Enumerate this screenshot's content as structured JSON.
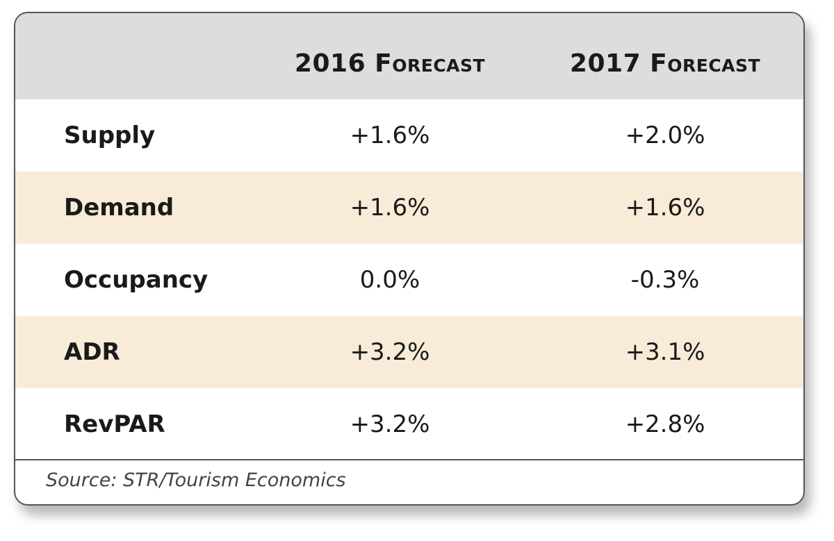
{
  "chart_data": {
    "type": "table",
    "columns": [
      "",
      "2016 Forecast",
      "2017 Forecast"
    ],
    "rows": [
      {
        "label": "Supply",
        "values": [
          "+1.6%",
          "+2.0%"
        ]
      },
      {
        "label": "Demand",
        "values": [
          "+1.6%",
          "+1.6%"
        ]
      },
      {
        "label": "Occupancy",
        "values": [
          "0.0%",
          "-0.3%"
        ]
      },
      {
        "label": "ADR",
        "values": [
          "+3.2%",
          "+3.1%"
        ]
      },
      {
        "label": "RevPAR",
        "values": [
          "+3.2%",
          "+2.8%"
        ]
      }
    ],
    "source": "Source: STR/Tourism Economics",
    "colors": {
      "header": "#dcdddf",
      "alt_row": "#f8ecd8",
      "border": "#555555"
    }
  }
}
